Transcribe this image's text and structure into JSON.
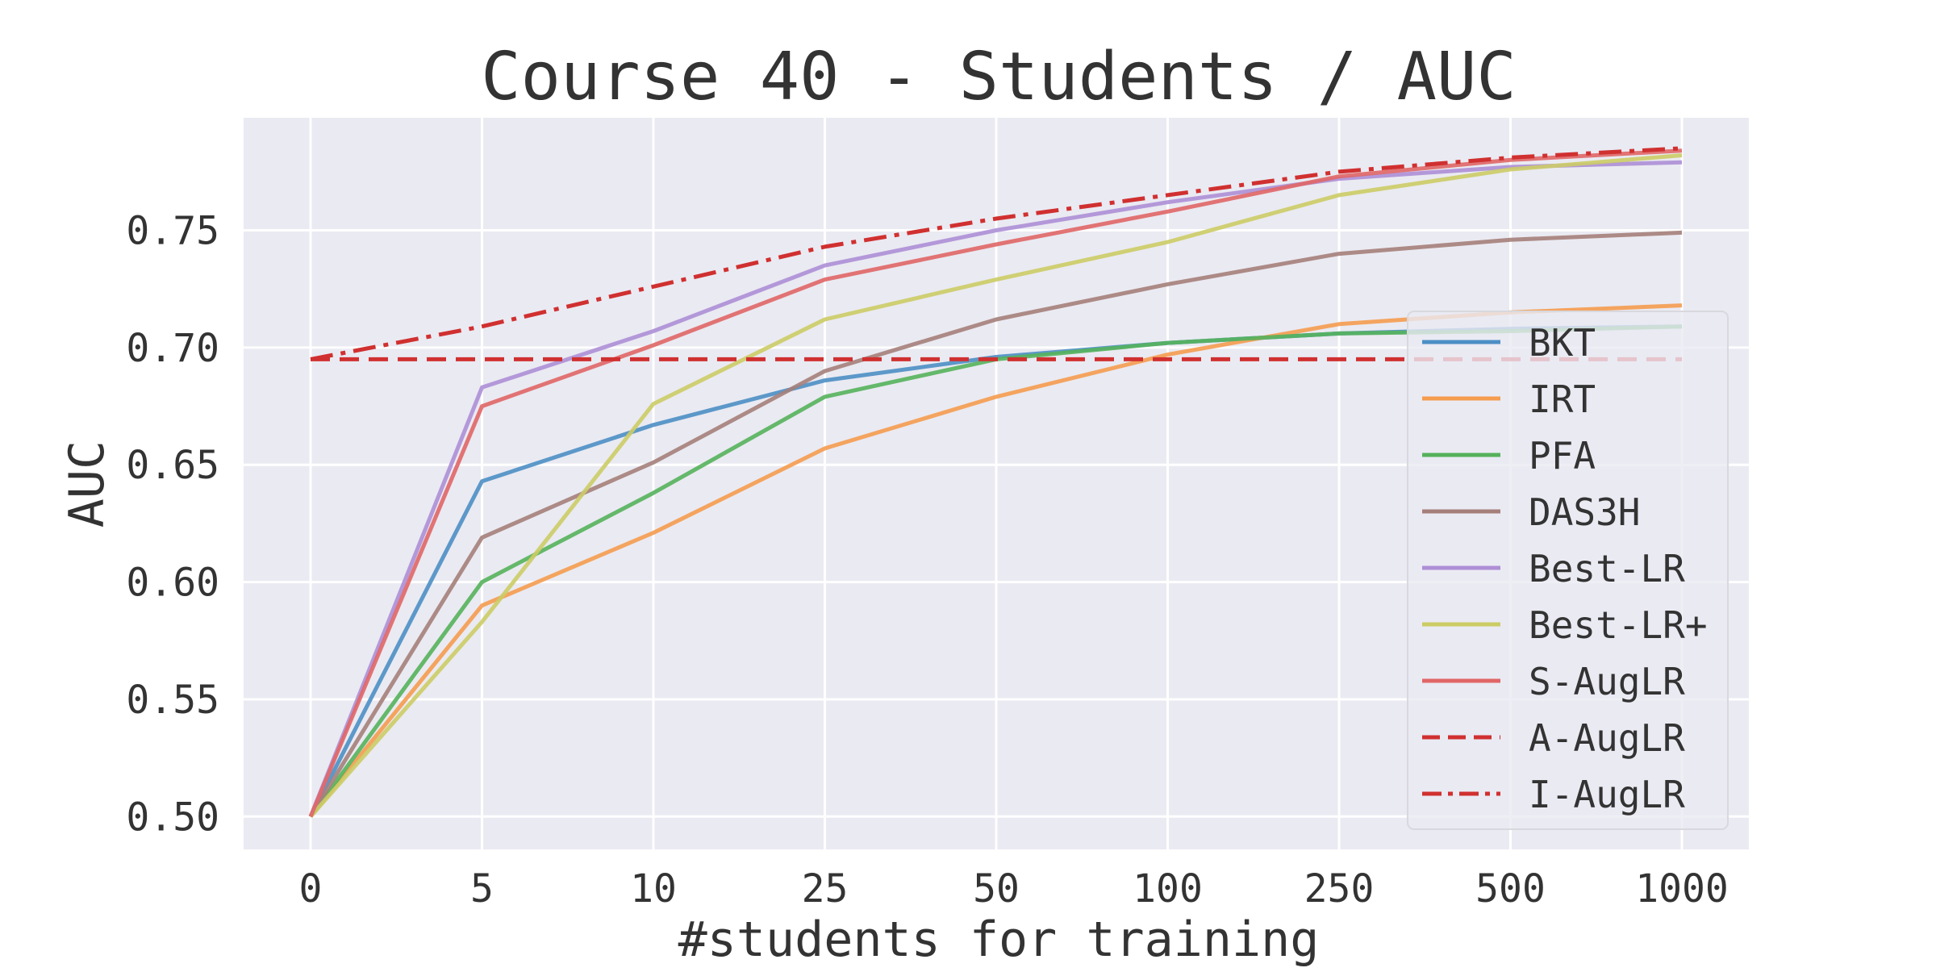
{
  "chart_data": {
    "type": "line",
    "title": "Course 40 - Students / AUC",
    "xlabel": "#students for training",
    "ylabel": "AUC",
    "categories": [
      "0",
      "5",
      "10",
      "25",
      "50",
      "100",
      "250",
      "500",
      "1000"
    ],
    "yticks": [
      "0.50",
      "0.55",
      "0.60",
      "0.65",
      "0.70",
      "0.75"
    ],
    "ylim": [
      0.486,
      0.798
    ],
    "grid": true,
    "legend_position": "lower-right",
    "series": [
      {
        "name": "BKT",
        "color": "#4c8fc4",
        "dash": "solid",
        "values": [
          0.5,
          0.643,
          0.667,
          0.686,
          0.696,
          0.702,
          0.706,
          0.708,
          0.709
        ]
      },
      {
        "name": "IRT",
        "color": "#f59c4f",
        "dash": "solid",
        "values": [
          0.5,
          0.59,
          0.621,
          0.657,
          0.679,
          0.697,
          0.71,
          0.715,
          0.718
        ]
      },
      {
        "name": "PFA",
        "color": "#55b25b",
        "dash": "solid",
        "values": [
          0.5,
          0.6,
          0.638,
          0.679,
          0.695,
          0.702,
          0.706,
          0.707,
          0.709
        ]
      },
      {
        "name": "DAS3H",
        "color": "#a57f7a",
        "dash": "solid",
        "values": [
          0.5,
          0.619,
          0.651,
          0.69,
          0.712,
          0.727,
          0.74,
          0.746,
          0.749
        ]
      },
      {
        "name": "Best-LR",
        "color": "#ad8fd6",
        "dash": "solid",
        "values": [
          0.5,
          0.683,
          0.707,
          0.735,
          0.75,
          0.762,
          0.772,
          0.777,
          0.779
        ]
      },
      {
        "name": "Best-LR+",
        "color": "#cccc66",
        "dash": "solid",
        "values": [
          0.5,
          0.583,
          0.676,
          0.712,
          0.729,
          0.745,
          0.765,
          0.776,
          0.782
        ]
      },
      {
        "name": "S-AugLR",
        "color": "#e06666",
        "dash": "solid",
        "values": [
          0.5,
          0.675,
          0.701,
          0.729,
          0.744,
          0.758,
          0.773,
          0.78,
          0.784
        ]
      },
      {
        "name": "A-AugLR",
        "color": "#d03030",
        "dash": "dashed",
        "values": [
          0.695,
          0.695,
          0.695,
          0.695,
          0.695,
          0.695,
          0.695,
          0.695,
          0.695
        ]
      },
      {
        "name": "I-AugLR",
        "color": "#d03030",
        "dash": "dashdot",
        "values": [
          0.695,
          0.709,
          0.726,
          0.743,
          0.755,
          0.765,
          0.775,
          0.781,
          0.785
        ]
      }
    ]
  }
}
